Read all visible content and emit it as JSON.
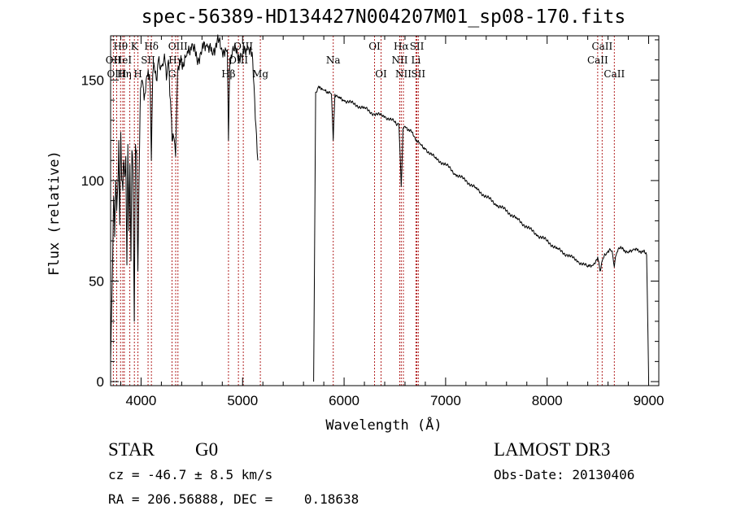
{
  "chart_data": {
    "type": "line",
    "title": "spec-56389-HD134427N004207M01_sp08-170.fits",
    "xlabel": "Wavelength (Å)",
    "ylabel": "Flux (relative)",
    "xlim": [
      3700,
      9100
    ],
    "ylim": [
      -2,
      172
    ],
    "xticks": [
      4000,
      5000,
      6000,
      7000,
      8000,
      9000
    ],
    "xtick_labels": [
      "4000",
      "5000",
      "6000",
      "7000",
      "8000",
      "9000"
    ],
    "yticks": [
      0,
      50,
      100,
      150
    ],
    "ytick_labels": [
      "0",
      "50",
      "100",
      "150"
    ],
    "grid": false,
    "series": [
      {
        "name": "flux",
        "segments": [
          {
            "x": [
              3700,
              3720,
              3730,
              3740,
              3750,
              3760,
              3770,
              3780,
              3790,
              3800,
              3810,
              3820,
              3830,
              3840,
              3850,
              3860,
              3870,
              3880,
              3890,
              3900,
              3910,
              3920,
              3933,
              3945,
              3955,
              3968,
              3980,
              3995,
              4010,
              4030,
              4050,
              4070,
              4090,
              4101,
              4115,
              4130,
              4150,
              4170,
              4190,
              4210,
              4230,
              4250,
              4270,
              4290,
              4305,
              4320,
              4340,
              4360,
              4380,
              4400,
              4450,
              4500,
              4550,
              4600,
              4650,
              4700,
              4750,
              4800,
              4830,
              4850,
              4861,
              4875,
              4900,
              4950,
              5000,
              5050,
              5100,
              5150
            ],
            "y": [
              10,
              60,
              92,
              72,
              100,
              85,
              96,
              120,
              78,
              124,
              100,
              95,
              110,
              102,
              112,
              58,
              118,
              75,
              108,
              60,
              115,
              105,
              30,
              118,
              115,
              55,
              100,
              146,
              150,
              140,
              150,
              155,
              145,
              110,
              153,
              157,
              150,
              160,
              155,
              158,
              163,
              150,
              160,
              140,
              120,
              122,
              112,
              155,
              160,
              158,
              162,
              168,
              160,
              165,
              168,
              163,
              170,
              164,
              166,
              165,
              120,
              160,
              165,
              163,
              162,
              167,
              160,
              110
            ]
          },
          {
            "x": [
              5700,
              5720,
              5750,
              5780,
              5800,
              5850,
              5875,
              5893,
              5910,
              5950,
              6000,
              6100,
              6200,
              6300,
              6400,
              6500,
              6540,
              6563,
              6580,
              6600,
              6650,
              6700,
              6750,
              6800,
              6900,
              7000,
              7100,
              7200,
              7300,
              7400,
              7500,
              7600,
              7700,
              7800,
              7900,
              8000,
              8100,
              8200,
              8300,
              8400,
              8450,
              8498,
              8520,
              8542,
              8560,
              8600,
              8640,
              8662,
              8680,
              8700,
              8750,
              8800,
              8850,
              8900,
              8950,
              8980,
              9000
            ],
            "y": [
              0,
              144,
              147,
              146,
              145,
              144,
              143,
              120,
              143,
              141,
              140,
              138,
              136,
              133,
              132,
              129,
              128,
              97,
              126,
              127,
              125,
              121,
              118,
              116,
              111,
              108,
              103,
              100,
              96,
              92,
              88,
              85,
              81,
              77,
              73,
              70,
              66,
              63,
              60,
              57,
              58,
              62,
              55,
              60,
              62,
              65,
              65,
              57,
              63,
              66,
              66,
              64,
              66,
              65,
              65,
              63,
              2
            ]
          }
        ]
      }
    ],
    "line_labels": [
      {
        "label": "Hθ",
        "wavelength": 3798,
        "row": 1
      },
      {
        "label": "OII",
        "wavelength": 3727,
        "row": 2
      },
      {
        "label": "HeI",
        "wavelength": 3820,
        "row": 2
      },
      {
        "label": "OIII",
        "wavelength": 3760,
        "row": 3
      },
      {
        "label": "Hη",
        "wavelength": 3835,
        "row": 3
      },
      {
        "label": "K",
        "wavelength": 3934,
        "row": 1
      },
      {
        "label": "SII",
        "wavelength": 4069,
        "row": 2
      },
      {
        "label": "H",
        "wavelength": 3969,
        "row": 3
      },
      {
        "label": "Hδ",
        "wavelength": 4102,
        "row": 1
      },
      {
        "label": "OIII",
        "wavelength": 4363,
        "row": 1
      },
      {
        "label": "Hγ",
        "wavelength": 4341,
        "row": 2
      },
      {
        "label": "G",
        "wavelength": 4305,
        "row": 3
      },
      {
        "label": "OIII",
        "wavelength": 5007,
        "row": 1
      },
      {
        "label": "OIII",
        "wavelength": 4959,
        "row": 2
      },
      {
        "label": "Hβ",
        "wavelength": 4861,
        "row": 3
      },
      {
        "label": "Mg",
        "wavelength": 5175,
        "row": 3
      },
      {
        "label": "Na",
        "wavelength": 5893,
        "row": 2
      },
      {
        "label": "OI",
        "wavelength": 6300,
        "row": 1
      },
      {
        "label": "OI",
        "wavelength": 6364,
        "row": 3
      },
      {
        "label": "Hα",
        "wavelength": 6563,
        "row": 1
      },
      {
        "label": "NII",
        "wavelength": 6548,
        "row": 2
      },
      {
        "label": "NII",
        "wavelength": 6584,
        "row": 3
      },
      {
        "label": "SII",
        "wavelength": 6717,
        "row": 1
      },
      {
        "label": "Li",
        "wavelength": 6708,
        "row": 2
      },
      {
        "label": "SII",
        "wavelength": 6731,
        "row": 3
      },
      {
        "label": "CaII",
        "wavelength": 8542,
        "row": 1
      },
      {
        "label": "CaII",
        "wavelength": 8498,
        "row": 2
      },
      {
        "label": "CaII",
        "wavelength": 8662,
        "row": 3
      }
    ],
    "marker_lines_wavelengths": [
      3727,
      3760,
      3798,
      3820,
      3835,
      3889,
      3934,
      3969,
      4069,
      4102,
      4305,
      4341,
      4363,
      4861,
      4959,
      5007,
      5175,
      5893,
      6300,
      6364,
      6548,
      6563,
      6584,
      6708,
      6717,
      6731,
      8498,
      8542,
      8662
    ],
    "colors": {
      "spectrum": "#000000",
      "marker_line": "#b22222",
      "axes": "#000000"
    }
  },
  "info": {
    "object_type": "STAR",
    "subclass": "G0",
    "survey": "LAMOST DR3",
    "cz": "cz = -46.7 ± 8.5 km/s",
    "obs_date": "Obs-Date: 20130406",
    "coords": "RA = 206.56888, DEC =    0.18638"
  }
}
